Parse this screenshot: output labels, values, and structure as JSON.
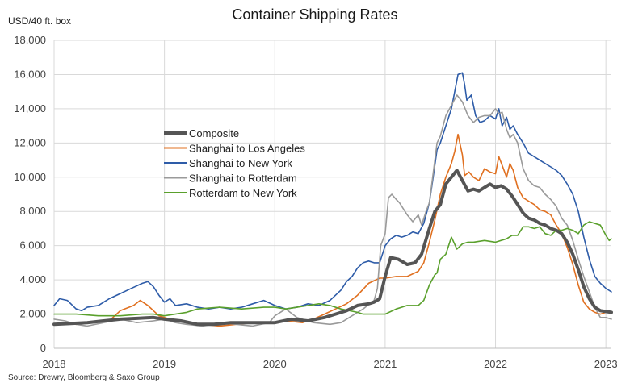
{
  "chart_data": {
    "type": "line",
    "title": "Container Shipping Rates",
    "ylabel": "USD/40 ft. box",
    "source": "Source: Drewry, Bloomberg & Saxo Group",
    "ylim": [
      0,
      18000
    ],
    "xlim": [
      2018.0,
      2023.05
    ],
    "yticks": [
      0,
      2000,
      4000,
      6000,
      8000,
      10000,
      12000,
      14000,
      16000,
      18000
    ],
    "ytick_labels": [
      "0",
      "2,000",
      "4,000",
      "6,000",
      "8,000",
      "10,000",
      "12,000",
      "14,000",
      "16,000",
      "18,000"
    ],
    "xticks": [
      2018,
      2019,
      2020,
      2021,
      2022,
      2023
    ],
    "xtick_labels": [
      "2018",
      "2019",
      "2020",
      "2021",
      "2022",
      "2023"
    ],
    "grid": "horizontal and vertical",
    "legend_position": "center-left",
    "series": [
      {
        "name": "Composite",
        "color": "#555555",
        "width": 4,
        "x": [
          2018.0,
          2018.15,
          2018.3,
          2018.45,
          2018.6,
          2018.75,
          2018.9,
          2019.0,
          2019.15,
          2019.3,
          2019.45,
          2019.6,
          2019.75,
          2019.9,
          2020.0,
          2020.15,
          2020.3,
          2020.45,
          2020.55,
          2020.65,
          2020.75,
          2020.85,
          2020.9,
          2020.95,
          2021.0,
          2021.05,
          2021.12,
          2021.2,
          2021.27,
          2021.33,
          2021.4,
          2021.45,
          2021.5,
          2021.55,
          2021.6,
          2021.65,
          2021.7,
          2021.75,
          2021.8,
          2021.85,
          2021.9,
          2021.95,
          2022.0,
          2022.05,
          2022.1,
          2022.15,
          2022.2,
          2022.25,
          2022.3,
          2022.35,
          2022.4,
          2022.45,
          2022.5,
          2022.55,
          2022.6,
          2022.65,
          2022.7,
          2022.75,
          2022.8,
          2022.85,
          2022.9,
          2022.95,
          2023.0,
          2023.05
        ],
        "y": [
          1400,
          1450,
          1500,
          1600,
          1700,
          1750,
          1800,
          1700,
          1600,
          1400,
          1400,
          1500,
          1500,
          1500,
          1500,
          1700,
          1600,
          1800,
          2000,
          2200,
          2500,
          2600,
          2700,
          2900,
          4200,
          5300,
          5200,
          4900,
          5000,
          5500,
          7000,
          8000,
          8400,
          9600,
          10000,
          10400,
          9800,
          9200,
          9300,
          9200,
          9400,
          9600,
          9400,
          9500,
          9300,
          8900,
          8400,
          7900,
          7600,
          7500,
          7300,
          7200,
          7000,
          6900,
          6700,
          6200,
          5500,
          4600,
          3600,
          2900,
          2400,
          2200,
          2150,
          2100
        ]
      },
      {
        "name": "Shanghai to Los Angeles",
        "color": "#e07020",
        "width": 1.6,
        "x": [
          2018.0,
          2018.1,
          2018.2,
          2018.35,
          2018.5,
          2018.6,
          2018.72,
          2018.78,
          2018.85,
          2018.95,
          2019.05,
          2019.2,
          2019.35,
          2019.5,
          2019.65,
          2019.8,
          2019.95,
          2020.1,
          2020.25,
          2020.35,
          2020.45,
          2020.55,
          2020.65,
          2020.75,
          2020.85,
          2020.95,
          2021.0,
          2021.1,
          2021.2,
          2021.3,
          2021.35,
          2021.4,
          2021.45,
          2021.5,
          2021.55,
          2021.6,
          2021.63,
          2021.66,
          2021.7,
          2021.72,
          2021.76,
          2021.8,
          2021.85,
          2021.9,
          2021.95,
          2022.0,
          2022.03,
          2022.06,
          2022.1,
          2022.13,
          2022.16,
          2022.2,
          2022.25,
          2022.3,
          2022.35,
          2022.4,
          2022.45,
          2022.5,
          2022.55,
          2022.6,
          2022.65,
          2022.7,
          2022.75,
          2022.8,
          2022.85,
          2022.9,
          2022.95,
          2023.0,
          2023.05
        ],
        "y": [
          1400,
          1500,
          1400,
          1500,
          1600,
          2200,
          2500,
          2800,
          2500,
          1900,
          1700,
          1500,
          1400,
          1300,
          1400,
          1500,
          1500,
          1600,
          1500,
          1700,
          2000,
          2300,
          2600,
          3100,
          3800,
          4100,
          4100,
          4200,
          4200,
          4500,
          5000,
          6200,
          7500,
          9000,
          10000,
          10800,
          11500,
          12500,
          11300,
          10100,
          10300,
          10000,
          9800,
          10500,
          10300,
          10200,
          11200,
          10700,
          10000,
          10800,
          10400,
          9400,
          8800,
          8600,
          8400,
          8100,
          8000,
          7800,
          7200,
          6700,
          5900,
          4900,
          3700,
          2700,
          2300,
          2100,
          2000,
          2100,
          2100
        ]
      },
      {
        "name": "Shanghai to New York",
        "color": "#2e5ca8",
        "width": 1.6,
        "x": [
          2018.0,
          2018.05,
          2018.12,
          2018.2,
          2018.25,
          2018.3,
          2018.4,
          2018.5,
          2018.6,
          2018.7,
          2018.8,
          2018.85,
          2018.9,
          2018.95,
          2019.0,
          2019.05,
          2019.1,
          2019.2,
          2019.3,
          2019.4,
          2019.5,
          2019.6,
          2019.7,
          2019.8,
          2019.9,
          2020.0,
          2020.1,
          2020.2,
          2020.3,
          2020.4,
          2020.5,
          2020.55,
          2020.6,
          2020.65,
          2020.7,
          2020.75,
          2020.8,
          2020.85,
          2020.9,
          2020.95,
          2021.0,
          2021.05,
          2021.1,
          2021.15,
          2021.2,
          2021.25,
          2021.3,
          2021.35,
          2021.4,
          2021.43,
          2021.47,
          2021.5,
          2021.55,
          2021.6,
          2021.63,
          2021.66,
          2021.7,
          2021.72,
          2021.74,
          2021.78,
          2021.82,
          2021.86,
          2021.9,
          2021.95,
          2022.0,
          2022.03,
          2022.06,
          2022.1,
          2022.13,
          2022.16,
          2022.2,
          2022.25,
          2022.3,
          2022.35,
          2022.4,
          2022.45,
          2022.5,
          2022.55,
          2022.6,
          2022.65,
          2022.7,
          2022.75,
          2022.8,
          2022.85,
          2022.9,
          2022.95,
          2023.0,
          2023.05
        ],
        "y": [
          2500,
          2900,
          2800,
          2300,
          2200,
          2400,
          2500,
          2900,
          3200,
          3500,
          3800,
          3900,
          3600,
          3100,
          2700,
          2900,
          2500,
          2600,
          2400,
          2300,
          2400,
          2300,
          2400,
          2600,
          2800,
          2500,
          2300,
          2400,
          2600,
          2500,
          2800,
          3100,
          3400,
          3900,
          4200,
          4700,
          5000,
          5100,
          5000,
          5000,
          6000,
          6400,
          6600,
          6500,
          6600,
          6800,
          6700,
          7300,
          8500,
          9800,
          11600,
          12000,
          13000,
          14000,
          15000,
          16000,
          16100,
          15400,
          14500,
          14800,
          13600,
          13200,
          13300,
          13600,
          13400,
          14000,
          13000,
          13500,
          12800,
          13000,
          12500,
          12000,
          11400,
          11200,
          11000,
          10800,
          10600,
          10400,
          10100,
          9600,
          9000,
          8000,
          6500,
          5200,
          4200,
          3800,
          3500,
          3300
        ]
      },
      {
        "name": "Shanghai to Rotterdam",
        "color": "#9a9a9a",
        "width": 1.6,
        "x": [
          2018.0,
          2018.1,
          2018.2,
          2018.3,
          2018.45,
          2018.6,
          2018.75,
          2018.9,
          2019.0,
          2019.1,
          2019.2,
          2019.35,
          2019.5,
          2019.65,
          2019.8,
          2019.95,
          2020.0,
          2020.1,
          2020.2,
          2020.35,
          2020.5,
          2020.6,
          2020.7,
          2020.8,
          2020.9,
          2020.93,
          2020.96,
          2021.0,
          2021.03,
          2021.06,
          2021.1,
          2021.13,
          2021.2,
          2021.25,
          2021.3,
          2021.33,
          2021.37,
          2021.4,
          2021.43,
          2021.47,
          2021.5,
          2021.55,
          2021.6,
          2021.65,
          2021.7,
          2021.75,
          2021.8,
          2021.85,
          2021.9,
          2021.95,
          2022.0,
          2022.03,
          2022.06,
          2022.1,
          2022.13,
          2022.16,
          2022.2,
          2022.25,
          2022.3,
          2022.35,
          2022.4,
          2022.45,
          2022.5,
          2022.55,
          2022.6,
          2022.65,
          2022.7,
          2022.75,
          2022.8,
          2022.85,
          2022.9,
          2022.95,
          2023.0,
          2023.05
        ],
        "y": [
          1700,
          1600,
          1400,
          1300,
          1500,
          1700,
          1500,
          1600,
          1700,
          1500,
          1400,
          1300,
          1500,
          1400,
          1300,
          1500,
          1900,
          2300,
          1800,
          1500,
          1400,
          1500,
          1900,
          2300,
          2800,
          3500,
          6000,
          6700,
          8800,
          9000,
          8700,
          8500,
          7800,
          7400,
          7800,
          7200,
          8000,
          8500,
          10000,
          12000,
          12400,
          13600,
          14200,
          14800,
          14400,
          13600,
          13200,
          13500,
          13600,
          13600,
          14000,
          13700,
          13800,
          12800,
          12300,
          12500,
          12000,
          10500,
          9800,
          9500,
          9400,
          9000,
          8700,
          8300,
          7600,
          7200,
          6300,
          5200,
          4200,
          3300,
          2400,
          1800,
          1800,
          1700
        ]
      },
      {
        "name": "Rotterdam to New York",
        "color": "#5aa02c",
        "width": 1.6,
        "x": [
          2018.0,
          2018.2,
          2018.4,
          2018.6,
          2018.8,
          2018.9,
          2019.0,
          2019.1,
          2019.2,
          2019.3,
          2019.5,
          2019.7,
          2019.9,
          2020.0,
          2020.1,
          2020.2,
          2020.3,
          2020.4,
          2020.5,
          2020.6,
          2020.75,
          2020.8,
          2020.9,
          2021.0,
          2021.1,
          2021.2,
          2021.25,
          2021.3,
          2021.35,
          2021.4,
          2021.45,
          2021.47,
          2021.5,
          2021.55,
          2021.6,
          2021.65,
          2021.7,
          2021.75,
          2021.8,
          2021.9,
          2022.0,
          2022.1,
          2022.15,
          2022.2,
          2022.25,
          2022.3,
          2022.35,
          2022.4,
          2022.45,
          2022.5,
          2022.55,
          2022.6,
          2022.65,
          2022.7,
          2022.75,
          2022.8,
          2022.85,
          2022.9,
          2022.95,
          2023.0,
          2023.03,
          2023.05
        ],
        "y": [
          2000,
          2000,
          1900,
          1900,
          2000,
          2000,
          1900,
          2000,
          2100,
          2300,
          2400,
          2300,
          2400,
          2400,
          2300,
          2400,
          2500,
          2600,
          2500,
          2300,
          2100,
          2000,
          2000,
          2000,
          2300,
          2500,
          2500,
          2500,
          2800,
          3700,
          4300,
          4400,
          5200,
          5500,
          6500,
          5800,
          6100,
          6200,
          6200,
          6300,
          6200,
          6400,
          6600,
          6600,
          7100,
          7100,
          7000,
          7100,
          6700,
          6600,
          6900,
          6900,
          7000,
          6900,
          6700,
          7200,
          7400,
          7300,
          7200,
          6600,
          6300,
          6400
        ]
      }
    ]
  }
}
